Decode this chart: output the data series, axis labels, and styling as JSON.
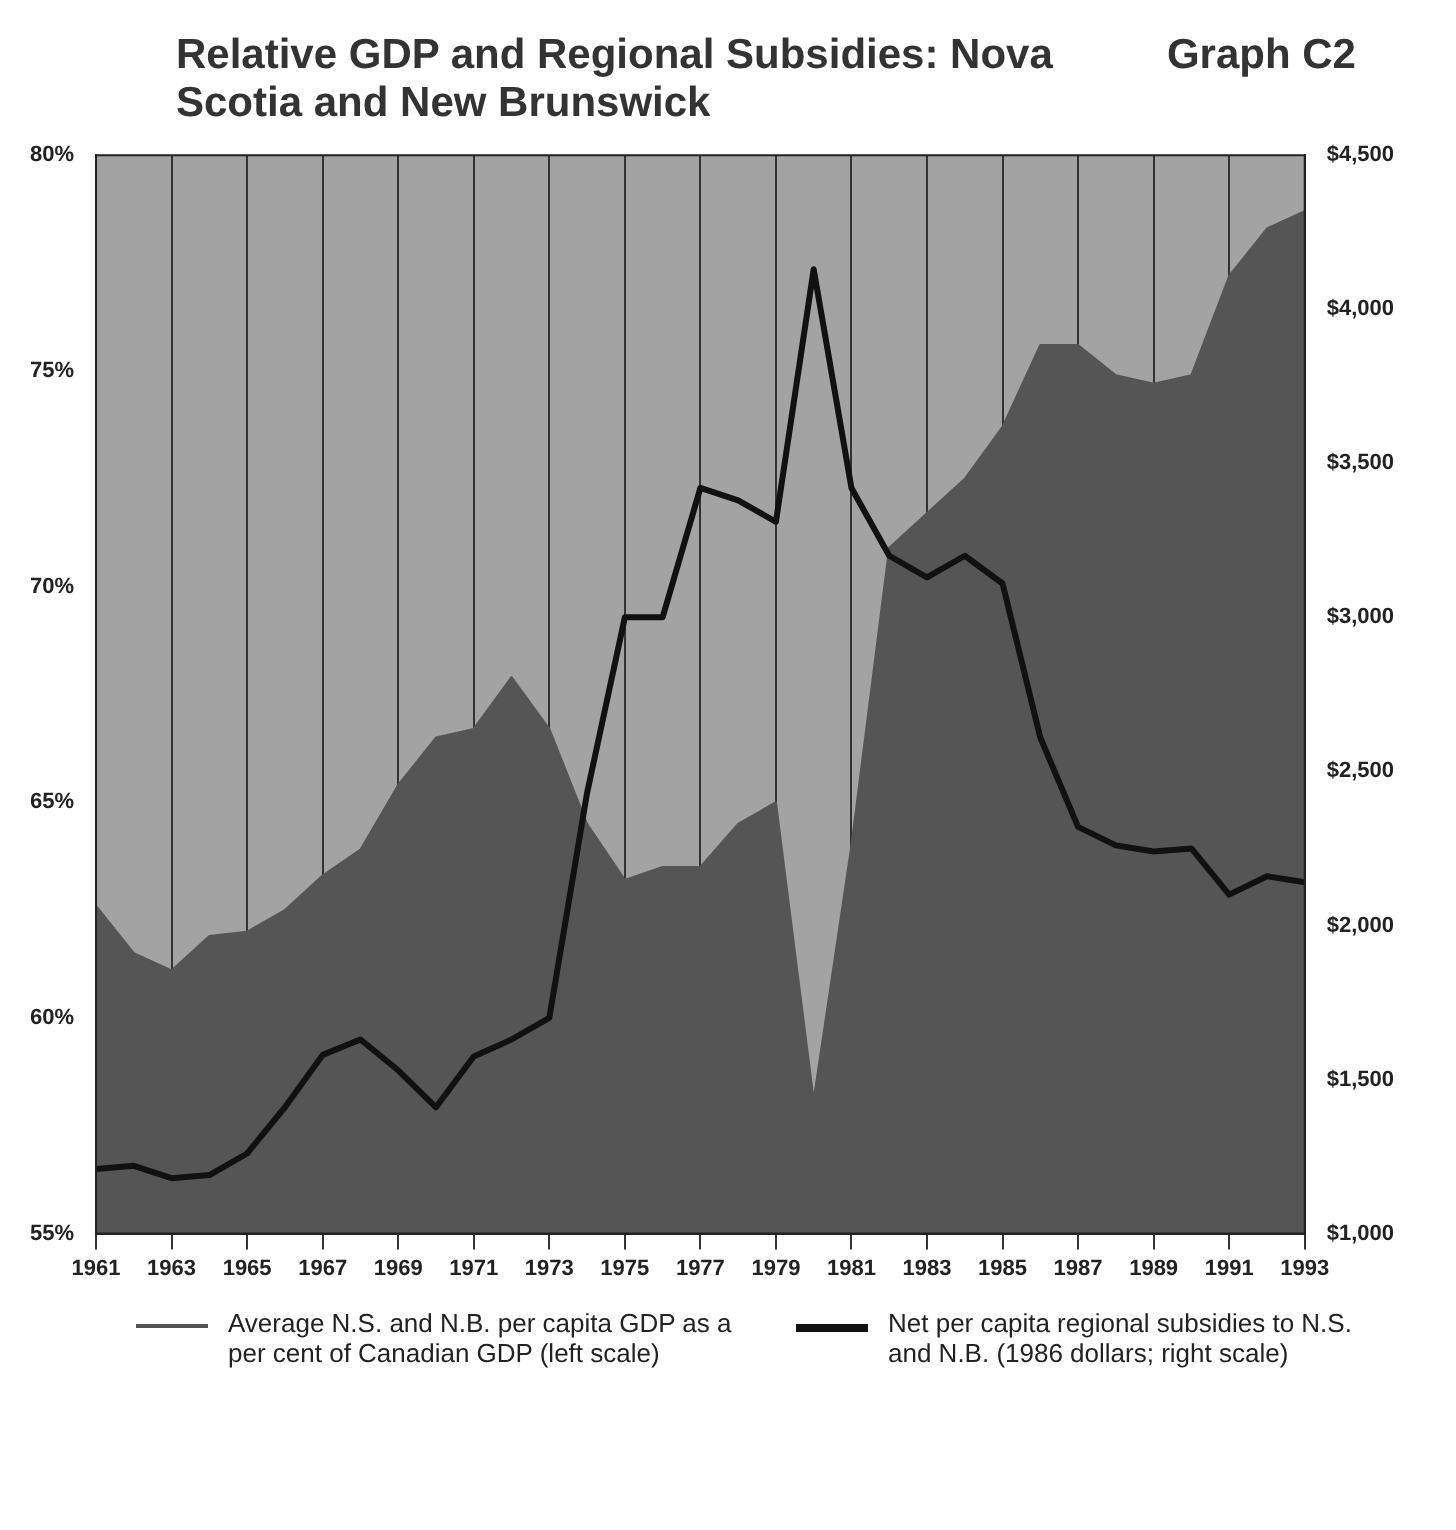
{
  "chart_data": {
    "type": "area",
    "title": "Relative GDP and Regional Subsidies: Nova Scotia and New Brunswick",
    "subtitle": "Graph C2",
    "x": [
      1961,
      1962,
      1963,
      1964,
      1965,
      1966,
      1967,
      1968,
      1969,
      1970,
      1971,
      1972,
      1973,
      1974,
      1975,
      1976,
      1977,
      1978,
      1979,
      1980,
      1981,
      1982,
      1983,
      1984,
      1985,
      1986,
      1987,
      1988,
      1989,
      1990,
      1991,
      1992,
      1993
    ],
    "series": [
      {
        "name": "Average N.S. and N.B. per capita GDP as a per cent of Canadian GDP (left scale)",
        "color": "#555555",
        "values": [
          62.6,
          61.5,
          61.1,
          61.9,
          62.0,
          62.5,
          63.3,
          63.9,
          65.4,
          66.5,
          66.7,
          67.9,
          66.7,
          64.5,
          63.2,
          63.5,
          63.5,
          64.5,
          65.0,
          58.1,
          64.0,
          70.9,
          71.7,
          72.5,
          73.7,
          75.6,
          75.6,
          74.9,
          74.7,
          74.9,
          77.2,
          78.3,
          78.7
        ]
      },
      {
        "name": "Net per capita regional subsidies to N.S. and N.B. (1986 dollars; right scale)",
        "type": "line",
        "axis": "y2",
        "color": "#111111",
        "values": [
          1210,
          1220,
          1180,
          1190,
          1260,
          1410,
          1580,
          1630,
          1530,
          1410,
          1575,
          1630,
          1700,
          2430,
          3000,
          3000,
          3420,
          3380,
          3310,
          4130,
          3420,
          3200,
          3130,
          3200,
          3110,
          2610,
          2320,
          2260,
          2240,
          2250,
          2100,
          2160,
          2140
        ]
      }
    ],
    "xlim": [
      1961,
      1993
    ],
    "xticks": [
      1961,
      1963,
      1965,
      1967,
      1969,
      1971,
      1973,
      1975,
      1977,
      1979,
      1981,
      1983,
      1985,
      1987,
      1989,
      1991,
      1993
    ],
    "ylim": [
      55,
      80
    ],
    "yticks": [
      {
        "value": 55,
        "label": "55%"
      },
      {
        "value": 60,
        "label": "60%"
      },
      {
        "value": 65,
        "label": "65%"
      },
      {
        "value": 70,
        "label": "70%"
      },
      {
        "value": 75,
        "label": "75%"
      },
      {
        "value": 80,
        "label": "80%"
      }
    ],
    "y2lim": [
      1000,
      4500
    ],
    "y2ticks": [
      {
        "value": 1000,
        "label": "$1,000"
      },
      {
        "value": 1500,
        "label": "$1,500"
      },
      {
        "value": 2000,
        "label": "$2,000"
      },
      {
        "value": 2500,
        "label": "$2,500"
      },
      {
        "value": 3000,
        "label": "$3,000"
      },
      {
        "value": 3500,
        "label": "$3,500"
      },
      {
        "value": 4000,
        "label": "$4,000"
      },
      {
        "value": 4500,
        "label": "$4,500"
      }
    ],
    "grid": "x",
    "legend": "bottom"
  }
}
